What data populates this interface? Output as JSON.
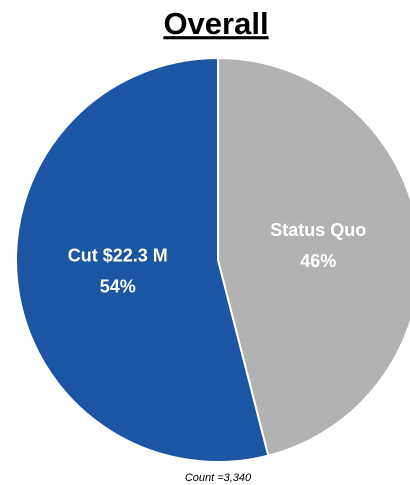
{
  "chart_data": {
    "type": "pie",
    "title": "Overall",
    "categories": [
      "Status Quo",
      "Cut $22.3 M"
    ],
    "values": [
      46,
      54
    ],
    "value_labels": [
      "46%",
      "54%"
    ],
    "colors": [
      "#b2b2b2",
      "#1b55a4"
    ],
    "annotation": "Count =3,340"
  }
}
